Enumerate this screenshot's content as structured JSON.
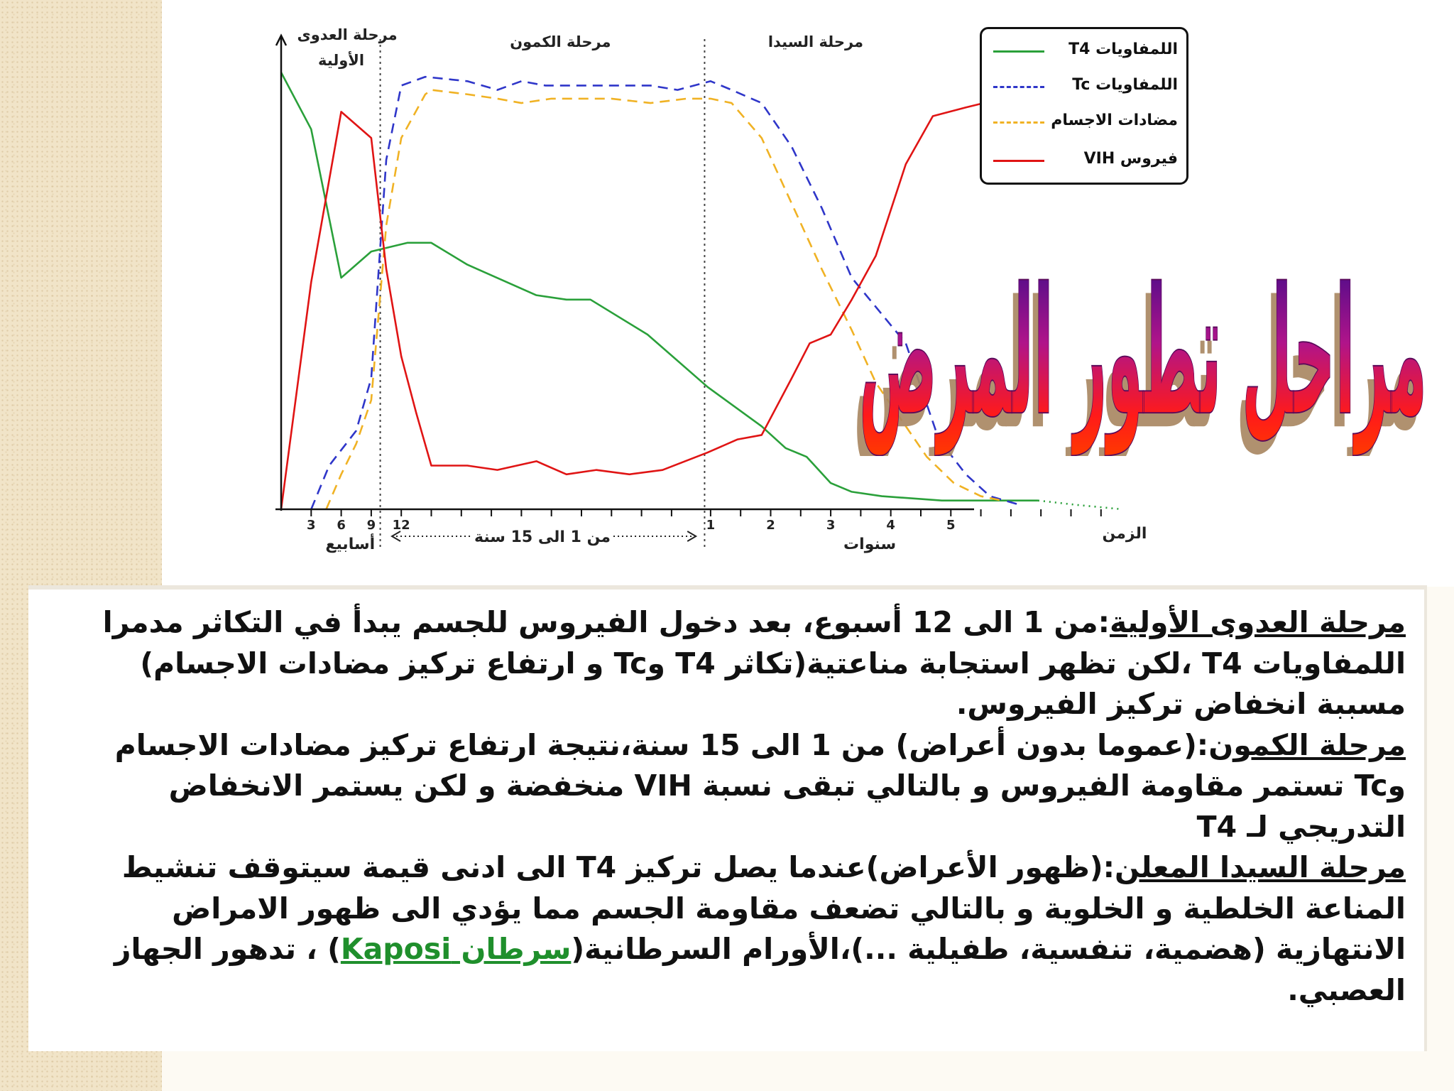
{
  "chart_data": {
    "type": "line",
    "phases": [
      {
        "name": "مرحلة العدوى الأولية"
      },
      {
        "name": "مرحلة الكمون"
      },
      {
        "name": "مرحلة السيدا"
      }
    ],
    "x_ticks_weeks": [
      "3",
      "6",
      "9",
      "12"
    ],
    "x_ticks_years": [
      "1",
      "2",
      "3",
      "4",
      "5"
    ],
    "x_unit_weeks": "أسابيع",
    "x_unit_years": "سنوات",
    "x_axis_label": "الزمن",
    "latency_span_label": "من 1 الى 15 سنة",
    "series": [
      {
        "name": "اللمفاويات T4",
        "color": "#2aa03a",
        "dash": "solid",
        "points": [
          [
            0,
            100
          ],
          [
            1.0,
            87
          ],
          [
            2.0,
            53
          ],
          [
            3.0,
            59
          ],
          [
            4.2,
            61
          ],
          [
            5.0,
            61
          ],
          [
            6.2,
            56
          ],
          [
            8.5,
            49
          ],
          [
            9.5,
            48
          ],
          [
            10.3,
            48
          ],
          [
            12.2,
            40
          ],
          [
            14.2,
            28
          ],
          [
            15.0,
            24
          ],
          [
            16.0,
            19
          ],
          [
            16.8,
            14
          ],
          [
            17.5,
            12
          ],
          [
            18.3,
            6
          ],
          [
            19.0,
            4
          ],
          [
            20.0,
            3
          ],
          [
            22.0,
            2
          ],
          [
            24.0,
            2
          ],
          [
            25.2,
            2
          ]
        ],
        "tail": [
          [
            25.2,
            2
          ],
          [
            26.5,
            1
          ],
          [
            28.0,
            0
          ]
        ]
      },
      {
        "name": "اللمفاويات Tc",
        "color": "#2f36c9",
        "dash": "dashed",
        "points": [
          [
            1.0,
            0
          ],
          [
            1.6,
            10
          ],
          [
            2.5,
            18
          ],
          [
            3.0,
            30
          ],
          [
            3.5,
            80
          ],
          [
            4.0,
            97
          ],
          [
            4.8,
            99
          ],
          [
            6.2,
            98
          ],
          [
            7.2,
            96
          ],
          [
            8.0,
            98
          ],
          [
            8.8,
            97
          ],
          [
            9.5,
            97
          ],
          [
            10.5,
            97
          ],
          [
            11.3,
            97
          ],
          [
            12.3,
            97
          ],
          [
            13.2,
            96
          ],
          [
            14.3,
            98
          ],
          [
            15.0,
            96
          ],
          [
            16.0,
            93
          ],
          [
            17.0,
            83
          ],
          [
            18.0,
            69
          ],
          [
            19.0,
            53
          ],
          [
            20.8,
            38
          ],
          [
            21.9,
            16
          ],
          [
            22.8,
            8
          ],
          [
            23.6,
            3
          ],
          [
            24.6,
            1
          ]
        ]
      },
      {
        "name": "مضادات الاجسام",
        "color": "#f0b224",
        "dash": "dashed",
        "points": [
          [
            1.5,
            0
          ],
          [
            2.0,
            8
          ],
          [
            2.5,
            15
          ],
          [
            3.0,
            25
          ],
          [
            3.5,
            65
          ],
          [
            4.0,
            85
          ],
          [
            4.8,
            95
          ],
          [
            5.0,
            96
          ],
          [
            6.2,
            95
          ],
          [
            7.2,
            94
          ],
          [
            8.0,
            93
          ],
          [
            9.0,
            94
          ],
          [
            10.0,
            94
          ],
          [
            11.0,
            94
          ],
          [
            12.3,
            93
          ],
          [
            13.5,
            94
          ],
          [
            14.3,
            94
          ],
          [
            15.0,
            93
          ],
          [
            16.0,
            85
          ],
          [
            17.0,
            70
          ],
          [
            18.0,
            55
          ],
          [
            19.0,
            41
          ],
          [
            19.8,
            29
          ],
          [
            20.8,
            19
          ],
          [
            21.5,
            12
          ],
          [
            22.4,
            6
          ],
          [
            23.3,
            3
          ],
          [
            24.0,
            2
          ]
        ]
      },
      {
        "name": "فيروس VIH",
        "color": "#e01414",
        "dash": "solid",
        "points": [
          [
            0,
            0
          ],
          [
            1.0,
            52
          ],
          [
            2.0,
            91
          ],
          [
            3.0,
            85
          ],
          [
            3.5,
            55
          ],
          [
            4.0,
            35
          ],
          [
            4.5,
            22
          ],
          [
            5.0,
            10
          ],
          [
            6.2,
            10
          ],
          [
            7.2,
            9
          ],
          [
            8.5,
            11
          ],
          [
            9.5,
            8
          ],
          [
            10.5,
            9
          ],
          [
            11.6,
            8
          ],
          [
            12.7,
            9
          ],
          [
            14.2,
            13
          ],
          [
            15.2,
            16
          ],
          [
            16.0,
            17
          ],
          [
            17.0,
            30
          ],
          [
            17.6,
            38
          ],
          [
            18.3,
            40
          ],
          [
            19.0,
            48
          ],
          [
            19.8,
            58
          ],
          [
            20.8,
            79
          ],
          [
            21.7,
            90
          ],
          [
            22.8,
            92
          ],
          [
            24.0,
            94
          ],
          [
            25.2,
            95
          ]
        ],
        "tail": [
          [
            25.2,
            95
          ],
          [
            27.3,
            100
          ],
          [
            28.0,
            101
          ]
        ]
      }
    ],
    "x_range": [
      0,
      28
    ],
    "y_range": [
      0,
      101
    ]
  },
  "big_title": "مراحل تطور المرض",
  "paragraphs": {
    "p1_heading": "مرحلة العدوى الأولية",
    "p1_body": ":من 1 الى 12 أسبوع، بعد دخول الفيروس للجسم يبدأ في التكاثر مدمرا اللمفاويات T4 ،لكن تظهر استجابة مناعتية(تكاثر T4 وTc و ارتفاع تركيز مضادات الاجسام) مسببة انخفاض  تركيز الفيروس.",
    "p2_heading": "مرحلة الكمون",
    "p2_body": ":(عموما بدون أعراض) من 1 الى 15 سنة،نتيجة ارتفاع تركيز مضادات الاجسام وTc تستمر مقاومة الفيروس و بالتالي تبقى نسبة VIH  منخفضة و لكن يستمر الانخفاض التدريجي لـ T4",
    "p3_heading": "مرحلة السيدا المعلن",
    "p3_body": ":(ظهور الأعراض)عندما يصل تركيز T4 الى ادنى قيمة سيتوقف تنشيط المناعة الخلطية و الخلوية و بالتالي تضعف مقاومة الجسم مما يؤدي الى ظهور الامراض الانتهازية (هضمية، تنفسية، طفيلية ...)،الأورام السرطانية(",
    "p3_link": "سرطان Kaposi",
    "p3_end": ") ، تدهور الجهاز العصبي."
  }
}
